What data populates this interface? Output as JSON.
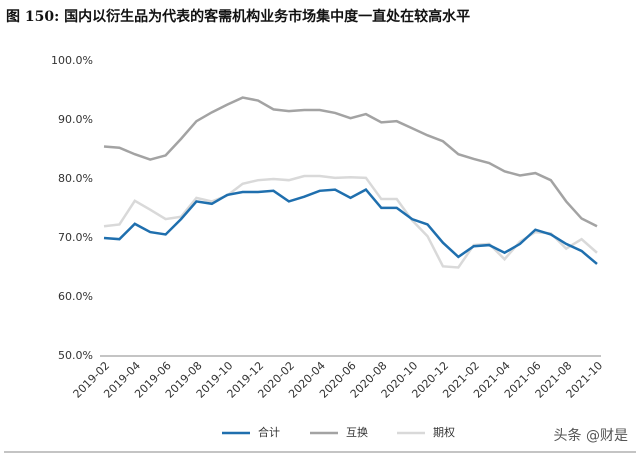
{
  "chart_data": {
    "type": "line",
    "title": "图 150: 国内以衍生品为代表的客需机构业务市场集中度一直处在较高水平",
    "categories": [
      "2019-02",
      null,
      "2019-04",
      null,
      "2019-06",
      null,
      "2019-08",
      null,
      "2019-10",
      null,
      "2019-12",
      null,
      "2020-02",
      null,
      "2020-04",
      null,
      "2020-06",
      null,
      "2020-08",
      null,
      "2020-10",
      null,
      "2020-12",
      null,
      "2021-02",
      null,
      "2021-04",
      null,
      "2021-06",
      null,
      "2021-08",
      null,
      "2021-10"
    ],
    "series": [
      {
        "name": "合计",
        "color": "#1f6fae",
        "values": [
          70.0,
          69.8,
          72.4,
          71.0,
          70.6,
          73.2,
          76.2,
          75.8,
          77.3,
          77.8,
          77.8,
          78.0,
          76.2,
          77.0,
          78.0,
          78.2,
          76.8,
          78.2,
          75.1,
          75.1,
          73.2,
          72.3,
          69.2,
          66.8,
          68.6,
          68.8,
          67.5,
          69.0,
          71.4,
          70.6,
          69.0,
          67.8,
          65.6
        ]
      },
      {
        "name": "互换",
        "color": "#a3a3a3",
        "values": [
          85.5,
          85.3,
          84.2,
          83.3,
          84.0,
          86.8,
          89.8,
          91.3,
          92.6,
          93.8,
          93.3,
          91.8,
          91.5,
          91.7,
          91.7,
          91.2,
          90.3,
          91.0,
          89.6,
          89.8,
          88.6,
          87.4,
          86.4,
          84.2,
          83.4,
          82.7,
          81.3,
          80.6,
          81.0,
          79.8,
          76.2,
          73.3,
          72.0
        ]
      },
      {
        "name": "期权",
        "color": "#d9d9d9",
        "values": [
          72.0,
          72.3,
          76.3,
          74.8,
          73.2,
          73.6,
          76.8,
          76.2,
          77.2,
          79.2,
          79.8,
          80.0,
          79.8,
          80.5,
          80.5,
          80.2,
          80.3,
          80.2,
          76.6,
          76.6,
          73.0,
          70.3,
          65.2,
          65.0,
          68.8,
          69.0,
          66.4,
          69.4,
          71.0,
          70.8,
          68.2,
          69.8,
          67.5
        ]
      }
    ],
    "ylim": [
      50,
      100
    ],
    "yticks": [
      {
        "value": 50,
        "label": "50.0%"
      },
      {
        "value": 60,
        "label": "60.0%"
      },
      {
        "value": 70,
        "label": "70.0%"
      },
      {
        "value": 80,
        "label": "80.0%"
      },
      {
        "value": 90,
        "label": "90.0%"
      },
      {
        "value": 100,
        "label": "100.0%"
      }
    ],
    "grid": false,
    "watermark": "头条 @财是"
  }
}
